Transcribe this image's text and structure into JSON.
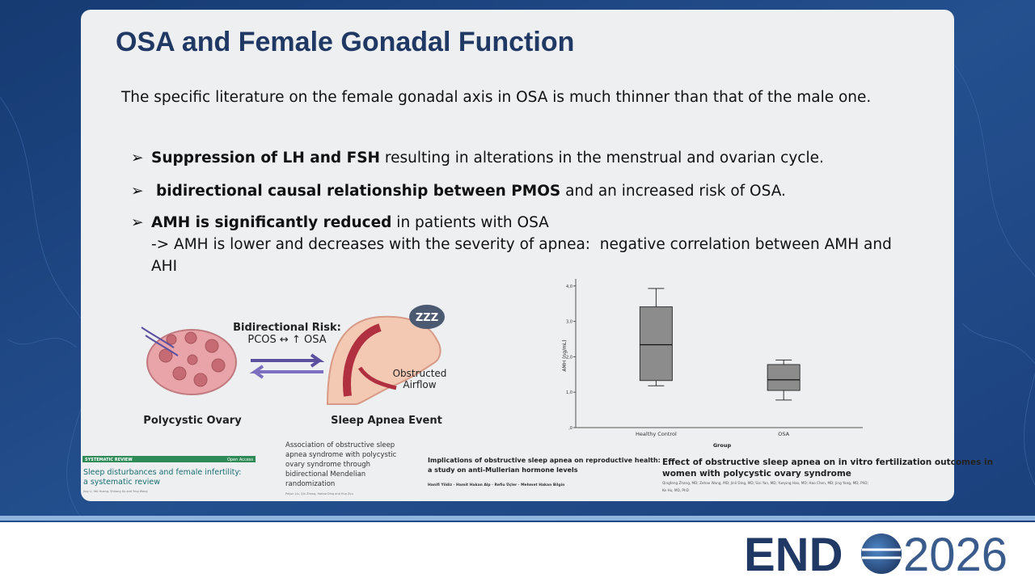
{
  "slide": {
    "title": "OSA and Female Gonadal Function",
    "intro": "The specific literature on the female gonadal axis in OSA is much thinner than that of the male one.",
    "bullets": [
      {
        "bold": "Suppression of LH and FSH",
        "text": " resulting in alterations in the menstrual and ovarian cycle."
      },
      {
        "bold": "bidirectional causal relationship between PMOS",
        "text": " and an increased risk of OSA."
      },
      {
        "bold": "AMH is significantly reduced",
        "text": " in patients with OSA",
        "detail_lines": [
          "-> AMH is lower and decreases with the severity of apnea:  negative correlation between AMH and",
          "AHI"
        ]
      }
    ]
  },
  "figure": {
    "risk_title": "Bidirectional Risk:",
    "risk_text": "PCOS ↔ ↑ OSA",
    "snore": "ZZZ",
    "airflow_lines": [
      "Obstructed",
      "Airflow"
    ],
    "left_caption": "Polycystic Ovary",
    "right_caption": "Sleep Apnea Event"
  },
  "chart_data": {
    "type": "box",
    "y_label": "AMH (ng/mL)",
    "x_label": "Group",
    "categories": [
      "Healthy Control",
      "OSA"
    ],
    "boxes": [
      {
        "whislo": 1.18,
        "q1": 1.33,
        "med": 2.34,
        "q3": 3.41,
        "whishi": 3.93
      },
      {
        "whislo": 0.78,
        "q1": 1.05,
        "med": 1.35,
        "q3": 1.78,
        "whishi": 1.91
      }
    ],
    "color": "#8c8c8c",
    "ylim": [
      0,
      4.2
    ],
    "yticks": [
      {
        "value": 0,
        "label": ",0"
      },
      {
        "value": 1,
        "label": "1,0"
      },
      {
        "value": 2,
        "label": "2,0"
      },
      {
        "value": 3,
        "label": "3,0"
      },
      {
        "value": 4,
        "label": "4,0"
      }
    ]
  },
  "papers": [
    {
      "badge": "SYSTEMATIC REVIEW",
      "access": "Open Access",
      "title_lines": [
        "Sleep disturbances and female infertility:",
        "a systematic review"
      ],
      "authors": "Jing Li, Yali Huang, Shirong Xu and Ying Wang"
    },
    {
      "title_lines": [
        "Association of obstructive sleep",
        "apnea syndrome with polycystic",
        "ovary syndrome through",
        "bidirectional Mendelian",
        "randomization"
      ],
      "authors": "Peijun Liu, Qin Zhang, Haitao Ding and Hua Zou"
    },
    {
      "title_lines": [
        "Implications of obstructive sleep apnea on reproductive health:",
        "a study on anti-Mullerian hormone levels"
      ],
      "authors": "Hanifi Yildiz · Hamit Hakan Alp · Refiu Üçler · Mehmet Hakan Bilgin"
    },
    {
      "title_lines": [
        "Effect of obstructive sleep apnea on in vitro fertilization outcomes in",
        "women with polycystic ovary syndrome"
      ],
      "authors_lines": [
        "Qingfeng Zhang, MD; Zehao Wang, MD; Jinli Ding, MD; Sisi Yan, MD; Yueying Hao, MD; Hao Chen, MD; Jing Yang, MD, PhD;",
        "Ke Hu, MD, PhD"
      ]
    }
  ],
  "footer": {
    "logo_left": "END",
    "logo_right": "2026"
  }
}
